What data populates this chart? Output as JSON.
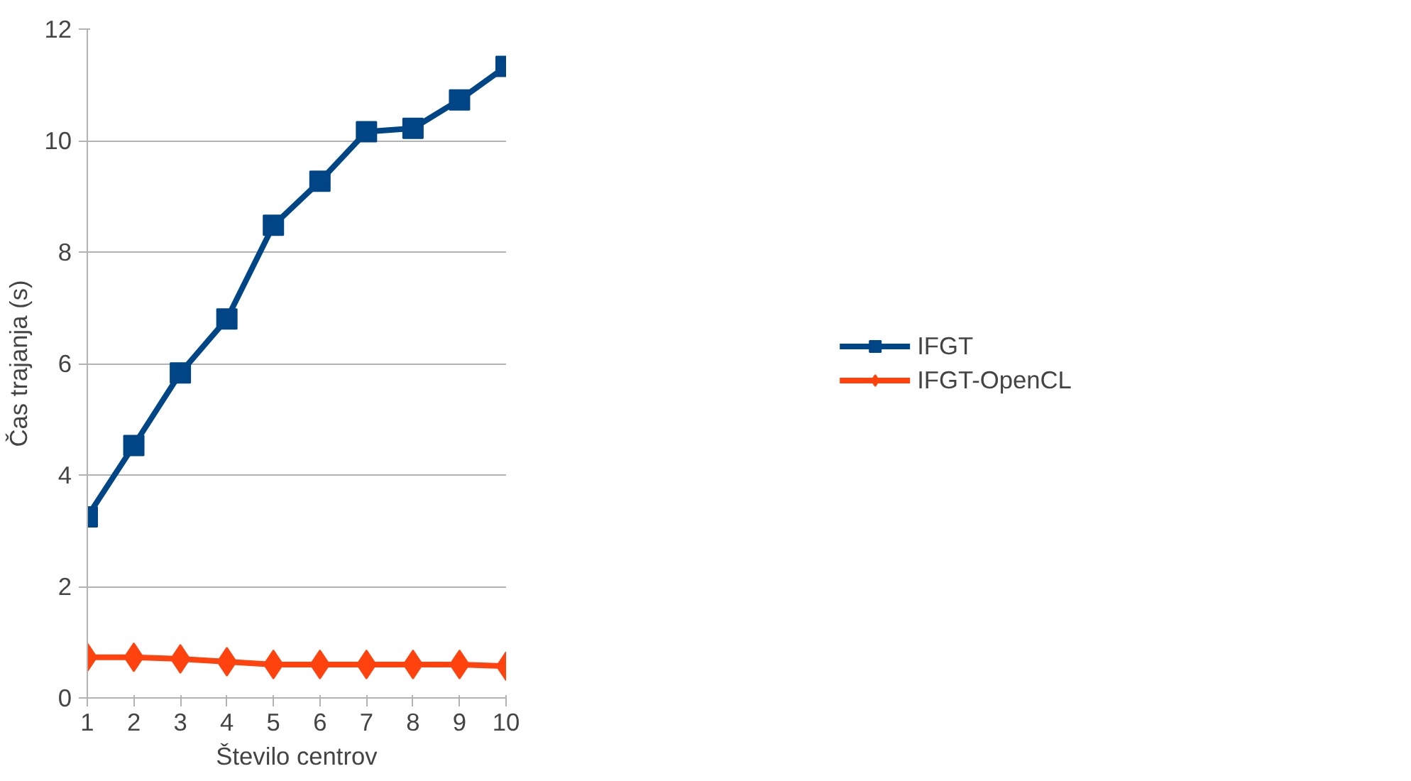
{
  "chart_data": {
    "type": "line",
    "xlabel": "Število centrov",
    "ylabel": "Čas trajanja (s)",
    "x": [
      1,
      2,
      3,
      4,
      5,
      6,
      7,
      8,
      9,
      10
    ],
    "xlim": [
      1,
      10
    ],
    "xticks": [
      1,
      2,
      3,
      4,
      5,
      6,
      7,
      8,
      9,
      10
    ],
    "ylim": [
      0,
      12
    ],
    "yticks": [
      0,
      2,
      4,
      6,
      8,
      10,
      12
    ],
    "grid": "y",
    "legend": "right",
    "series": [
      {
        "name": "IFGT",
        "color": "#004586",
        "marker": "square",
        "values": [
          3.25,
          4.53,
          5.83,
          6.8,
          8.48,
          9.27,
          10.16,
          10.22,
          10.73,
          11.33
        ]
      },
      {
        "name": "IFGT-OpenCL",
        "color": "#ff420e",
        "marker": "diamond",
        "values": [
          0.73,
          0.73,
          0.7,
          0.65,
          0.6,
          0.6,
          0.6,
          0.6,
          0.6,
          0.57
        ]
      }
    ]
  }
}
